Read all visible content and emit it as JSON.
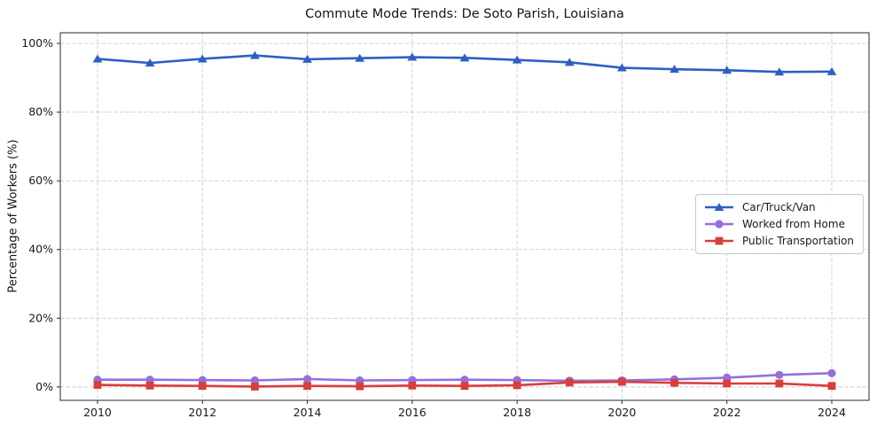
{
  "figure": {
    "title": "Commute Mode Trends: De Soto Parish, Louisiana"
  },
  "chart_data": {
    "type": "line",
    "title": "Commute Mode Trends: De Soto Parish, Louisiana",
    "xlabel": "",
    "ylabel": "Percentage of Workers (%)",
    "x": [
      2010,
      2011,
      2012,
      2013,
      2014,
      2015,
      2016,
      2017,
      2018,
      2019,
      2020,
      2021,
      2022,
      2023,
      2024
    ],
    "series": [
      {
        "name": "Car/Truck/Van",
        "marker": "triangle",
        "color": "#2c5fc2",
        "values": [
          95.5,
          94.3,
          95.5,
          96.5,
          95.4,
          95.7,
          96.0,
          95.8,
          95.2,
          94.5,
          92.9,
          92.5,
          92.2,
          91.7,
          91.8
        ]
      },
      {
        "name": "Worked from Home",
        "marker": "circle",
        "color": "#9370db",
        "values": [
          2.1,
          2.1,
          2.0,
          1.9,
          2.3,
          1.9,
          2.0,
          2.1,
          2.0,
          1.8,
          1.9,
          2.2,
          2.7,
          3.5,
          4.0
        ]
      },
      {
        "name": "Public Transportation",
        "marker": "square",
        "color": "#d93d3d",
        "values": [
          0.6,
          0.4,
          0.3,
          0.1,
          0.3,
          0.2,
          0.4,
          0.3,
          0.5,
          1.3,
          1.5,
          1.2,
          1.0,
          1.0,
          0.3
        ]
      }
    ],
    "x_tick_values": [
      2010,
      2012,
      2014,
      2016,
      2018,
      2020,
      2022,
      2024
    ],
    "x_tick_labels": [
      "2010",
      "2012",
      "2014",
      "2016",
      "2018",
      "2020",
      "2022",
      "2024"
    ],
    "y_tick_values": [
      0,
      20,
      40,
      60,
      80,
      100
    ],
    "y_tick_labels": [
      "0%",
      "20%",
      "40%",
      "60%",
      "80%",
      "100%"
    ],
    "xlim": [
      2009.29,
      2024.71
    ],
    "ylim": [
      -3.9,
      103.1
    ],
    "grid": true,
    "grid_color": "#cccccc",
    "spine_color": "#2a2a2a",
    "legend_position": "center right"
  }
}
